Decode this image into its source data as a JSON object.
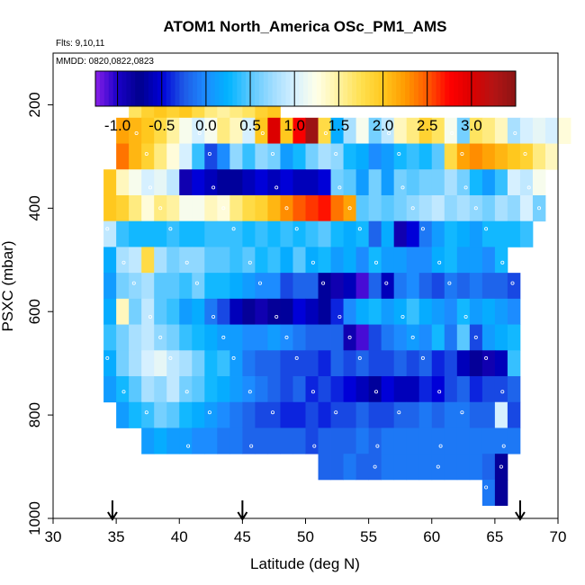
{
  "chart_data": {
    "type": "heatmap",
    "title": "ATOM1 North_America OSc_PM1_AMS",
    "flights_label": "Flts: 9,10,11",
    "dates_label": "MMDD: 0820,0822,0823",
    "xlabel": "Latitude (deg N)",
    "ylabel": "PSXC (mbar)",
    "xlim": [
      30,
      70
    ],
    "ylim": [
      1000,
      100
    ],
    "x_ticks": [
      "30",
      "35",
      "40",
      "45",
      "50",
      "55",
      "60",
      "65",
      "70"
    ],
    "y_ticks": [
      "200",
      "400",
      "600",
      "800",
      "1000"
    ],
    "colorbar": {
      "range": [
        -1.25,
        3.5
      ],
      "ticks": [
        "-1.0",
        "-0.5",
        "0.0",
        "0.5",
        "1.0",
        "1.5",
        "2.0",
        "2.5",
        "3.0"
      ],
      "stops": [
        {
          "v": -1.25,
          "c": "#8a1fe8"
        },
        {
          "v": -1.0,
          "c": "#1a00c8"
        },
        {
          "v": -0.75,
          "c": "#00008c"
        },
        {
          "v": -0.5,
          "c": "#0000d8"
        },
        {
          "v": -0.25,
          "c": "#1e5ae6"
        },
        {
          "v": 0.0,
          "c": "#1c8cff"
        },
        {
          "v": 0.25,
          "c": "#00b4ff"
        },
        {
          "v": 0.5,
          "c": "#5ac8ff"
        },
        {
          "v": 0.75,
          "c": "#9edcff"
        },
        {
          "v": 1.0,
          "c": "#d6f0ff"
        },
        {
          "v": 1.25,
          "c": "#ffffe8"
        },
        {
          "v": 1.5,
          "c": "#fff2a0"
        },
        {
          "v": 1.75,
          "c": "#ffe050"
        },
        {
          "v": 2.0,
          "c": "#ffc81e"
        },
        {
          "v": 2.25,
          "c": "#ff9a00"
        },
        {
          "v": 2.5,
          "c": "#ff5a00"
        },
        {
          "v": 2.75,
          "c": "#ff0000"
        },
        {
          "v": 3.0,
          "c": "#dc0000"
        },
        {
          "v": 3.25,
          "c": "#b41414"
        },
        {
          "v": 3.5,
          "c": "#8c1414"
        }
      ]
    },
    "cell_width_deg": 1,
    "cell_height_mbar": 50,
    "rows": [
      {
        "p": 200,
        "x0": 36,
        "values": [
          1.7,
          1.9,
          2.0,
          1.9,
          2.0,
          1.8,
          1.6,
          1.5,
          1.6,
          1.7,
          1.9,
          2.0
        ]
      },
      {
        "p": 250,
        "x0": 35,
        "values": [
          2.2,
          2.1,
          2.0,
          1.8,
          1.5,
          1.2,
          1.0,
          1.2,
          1.6,
          1.4,
          1.0,
          2.0,
          3.0,
          2.0,
          2.8,
          3.4,
          1.8,
          0.2,
          0.8,
          1.2,
          0.6,
          0.9,
          1.4,
          1.6,
          1.9,
          1.7,
          1.2,
          0.6,
          1.7,
          1.6,
          1.4,
          0.8,
          1.0,
          1.1,
          1.0,
          1.3
        ]
      },
      {
        "p": 300,
        "x0": 35,
        "values": [
          2.4,
          2.1,
          1.9,
          1.6,
          1.3,
          1.0,
          0.4,
          -0.3,
          0.0,
          0.7,
          0.4,
          0.7,
          0.6,
          0.1,
          0.3,
          0.6,
          0.8,
          0.7,
          0.3,
          0.2,
          0.0,
          0.1,
          0.3,
          0.4,
          0.3,
          0.5,
          1.8,
          2.2,
          2.3,
          2.2,
          2.1,
          2.0,
          1.9,
          1.6,
          1.4
        ]
      },
      {
        "p": 350,
        "x0": 34,
        "values": [
          2.0,
          1.4,
          1.2,
          1.0,
          1.1,
          0.9,
          -0.9,
          -0.5,
          -0.6,
          -0.7,
          -0.7,
          -0.6,
          -0.5,
          -0.6,
          -0.5,
          -0.6,
          -0.6,
          -0.5,
          0.6,
          0.5,
          0.1,
          0.6,
          0.1,
          0.6,
          0.5,
          0.6,
          0.6,
          0.8,
          0.6,
          0.3,
          0.1,
          0.4,
          1.0,
          0.9,
          1.2
        ]
      },
      {
        "p": 400,
        "x0": 34,
        "values": [
          2.0,
          1.9,
          1.6,
          1.3,
          1.6,
          1.5,
          1.2,
          1.2,
          1.4,
          1.3,
          1.6,
          1.8,
          1.9,
          2.1,
          2.3,
          2.5,
          2.6,
          2.7,
          2.4,
          2.2,
          0.5,
          0.6,
          0.5,
          0.6,
          0.7,
          0.8,
          0.9,
          0.7,
          0.8,
          0.7,
          0.6,
          0.8,
          0.7,
          1.0,
          0.6
        ]
      },
      {
        "p": 450,
        "x0": 34,
        "values": [
          0.9,
          0.4,
          0.3,
          0.3,
          0.3,
          0.4,
          0.3,
          0.3,
          0.4,
          0.4,
          0.4,
          0.3,
          0.4,
          0.3,
          0.4,
          0.3,
          0.4,
          0.5,
          0.3,
          0.2,
          0.3,
          -0.2,
          0.2,
          -0.9,
          -0.5,
          -0.1,
          0.1,
          0.3,
          0.2,
          0.1,
          0.3,
          0.3,
          0.3,
          0.4
        ]
      },
      {
        "p": 500,
        "x0": 34,
        "values": [
          0.2,
          0.8,
          0.9,
          1.8,
          0.8,
          0.6,
          0.7,
          0.7,
          0.5,
          0.5,
          0.4,
          0.5,
          0.3,
          0.4,
          0.2,
          0.5,
          0.2,
          0.3,
          0.1,
          0.2,
          0.0,
          0.3,
          0.1,
          0.1,
          0.0,
          0.0,
          0.2,
          0.3,
          0.1,
          0.1,
          0.0,
          0.3
        ]
      },
      {
        "p": 550,
        "x0": 34,
        "values": [
          0.1,
          0.6,
          0.7,
          0.8,
          0.5,
          0.5,
          0.4,
          0.6,
          0.3,
          0.3,
          0.2,
          0.1,
          0.0,
          0.0,
          -0.3,
          -0.2,
          -0.2,
          -0.7,
          -0.9,
          -0.6,
          -1.1,
          -0.2,
          -0.6,
          -0.1,
          0.0,
          -0.2,
          -0.3,
          -0.1,
          -0.2,
          -0.1,
          -0.2,
          -0.2,
          -0.3
        ]
      },
      {
        "p": 600,
        "x0": 34,
        "values": [
          0.2,
          1.4,
          0.6,
          0.9,
          0.5,
          0.4,
          0.1,
          0.2,
          -0.1,
          -0.3,
          -0.6,
          -0.8,
          -0.9,
          -0.8,
          -0.7,
          -0.5,
          -0.6,
          -0.7,
          -0.4,
          0.0,
          0.2,
          0.3,
          0.1,
          0.2,
          0.4,
          0.2,
          0.1,
          0.0,
          0.3,
          0.1,
          0.2,
          0.1,
          0.0
        ]
      },
      {
        "p": 650,
        "x0": 34,
        "values": [
          0.4,
          0.6,
          0.8,
          0.9,
          0.7,
          0.6,
          0.4,
          0.3,
          0.2,
          0.1,
          0.1,
          0.0,
          0.0,
          0.1,
          0.0,
          -0.1,
          -0.2,
          -0.2,
          -0.2,
          -0.9,
          -1.1,
          -0.3,
          -0.1,
          0.0,
          0.1,
          0.0,
          0.3,
          -0.1,
          0.5,
          -0.3,
          0.1,
          0.2,
          0.3
        ]
      },
      {
        "p": 700,
        "x0": 34,
        "values": [
          0.2,
          0.6,
          0.8,
          1.0,
          1.1,
          0.9,
          0.8,
          0.6,
          0.3,
          0.4,
          0.1,
          -0.1,
          -0.2,
          -0.2,
          -0.3,
          -0.3,
          -0.3,
          -0.4,
          -0.2,
          -0.3,
          -0.2,
          -0.3,
          -0.3,
          -0.2,
          -0.3,
          -0.2,
          -0.4,
          -0.3,
          -0.6,
          -0.8,
          -0.9,
          -0.6,
          0.4
        ]
      },
      {
        "p": 750,
        "x0": 34,
        "values": [
          0.1,
          0.3,
          0.5,
          0.8,
          0.7,
          0.9,
          0.6,
          0.5,
          0.3,
          0.2,
          0.1,
          0.0,
          -0.1,
          -0.2,
          -0.3,
          -0.2,
          -0.4,
          -0.3,
          -0.4,
          -0.5,
          -0.6,
          -0.7,
          -0.5,
          -0.6,
          -0.6,
          -0.4,
          -0.5,
          -0.3,
          -0.2,
          -0.4,
          -0.3,
          -0.3,
          -0.2
        ]
      },
      {
        "p": 800,
        "x0": 35,
        "values": [
          0.1,
          0.3,
          0.4,
          0.6,
          0.5,
          0.3,
          0.2,
          0.1,
          0.0,
          -0.1,
          -0.2,
          -0.3,
          -0.3,
          -0.4,
          -0.4,
          -0.3,
          -0.4,
          -0.3,
          -0.3,
          -0.2,
          -0.3,
          -0.3,
          -0.2,
          -0.2,
          -0.1,
          -0.2,
          -0.1,
          -0.1,
          -0.2,
          -0.2,
          1.0,
          -0.3
        ]
      },
      {
        "p": 850,
        "x0": 37,
        "values": [
          0.1,
          0.2,
          0.1,
          0.1,
          0.0,
          0.0,
          -0.1,
          -0.1,
          -0.2,
          -0.2,
          -0.2,
          -0.2,
          -0.2,
          -0.3,
          -0.2,
          -0.2,
          -0.2,
          -0.1,
          -0.2,
          -0.1,
          -0.1,
          -0.1,
          -0.1,
          -0.1,
          -0.1,
          -0.1,
          -0.1,
          -0.1,
          -0.1,
          -0.1
        ]
      },
      {
        "p": 900,
        "x0": 51,
        "values": [
          -0.2,
          -0.2,
          -0.1,
          -0.2,
          -0.2,
          -0.1,
          -0.1,
          -0.1,
          -0.1,
          -0.1,
          -0.1,
          -0.1,
          -0.1,
          -0.2,
          -0.8
        ]
      },
      {
        "p": 950,
        "x0": 64,
        "values": [
          -0.1,
          -0.8
        ]
      }
    ],
    "arrow_latitudes": [
      34.7,
      45.0,
      67.0
    ]
  }
}
